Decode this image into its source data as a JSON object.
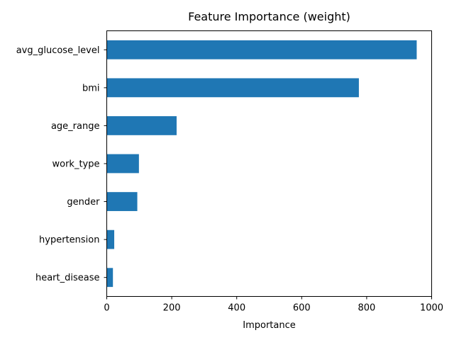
{
  "chart_data": {
    "type": "bar",
    "orientation": "horizontal",
    "title": "Feature Importance (weight)",
    "xlabel": "Importance",
    "ylabel": "",
    "xlim": [
      0,
      1000
    ],
    "xticks": [
      0,
      200,
      400,
      600,
      800,
      1000
    ],
    "categories": [
      "avg_glucose_level",
      "bmi",
      "age_range",
      "work_type",
      "gender",
      "hypertension",
      "heart_disease"
    ],
    "values": [
      954,
      776,
      215,
      99,
      94,
      23,
      19
    ],
    "bar_color": "#1f77b4",
    "grid": false,
    "legend": "none"
  }
}
